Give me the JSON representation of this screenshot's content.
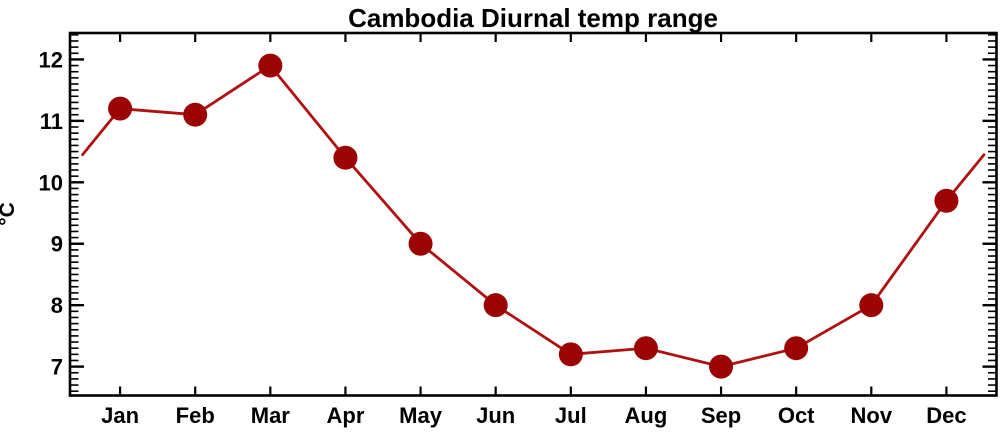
{
  "figure": {
    "background": "#ffffff"
  },
  "chart_data": {
    "type": "line",
    "title": "Cambodia Diurnal temp range",
    "ylabel": "°C",
    "xlabel": "",
    "categories": [
      "Jan",
      "Feb",
      "Mar",
      "Apr",
      "May",
      "Jun",
      "Jul",
      "Aug",
      "Sep",
      "Oct",
      "Nov",
      "Dec"
    ],
    "values": [
      11.2,
      11.1,
      11.9,
      10.4,
      9.0,
      8.0,
      7.2,
      7.3,
      7.0,
      7.3,
      8.0,
      9.7
    ],
    "edge_points": {
      "left": {
        "month_x": -0.5,
        "value": 10.45
      },
      "right": {
        "month_x": 11.5,
        "value": 10.45
      }
    },
    "ylim": [
      6.53,
      12.43
    ],
    "yticks": [
      7,
      8,
      9,
      10,
      11,
      12
    ],
    "y_minor_step": 0.1,
    "xlim_months": [
      -0.6667,
      11.6667
    ],
    "grid": false,
    "legend": null,
    "line_color": "#b11010",
    "marker_color": "#9c0303",
    "axis_color": "#000000"
  }
}
